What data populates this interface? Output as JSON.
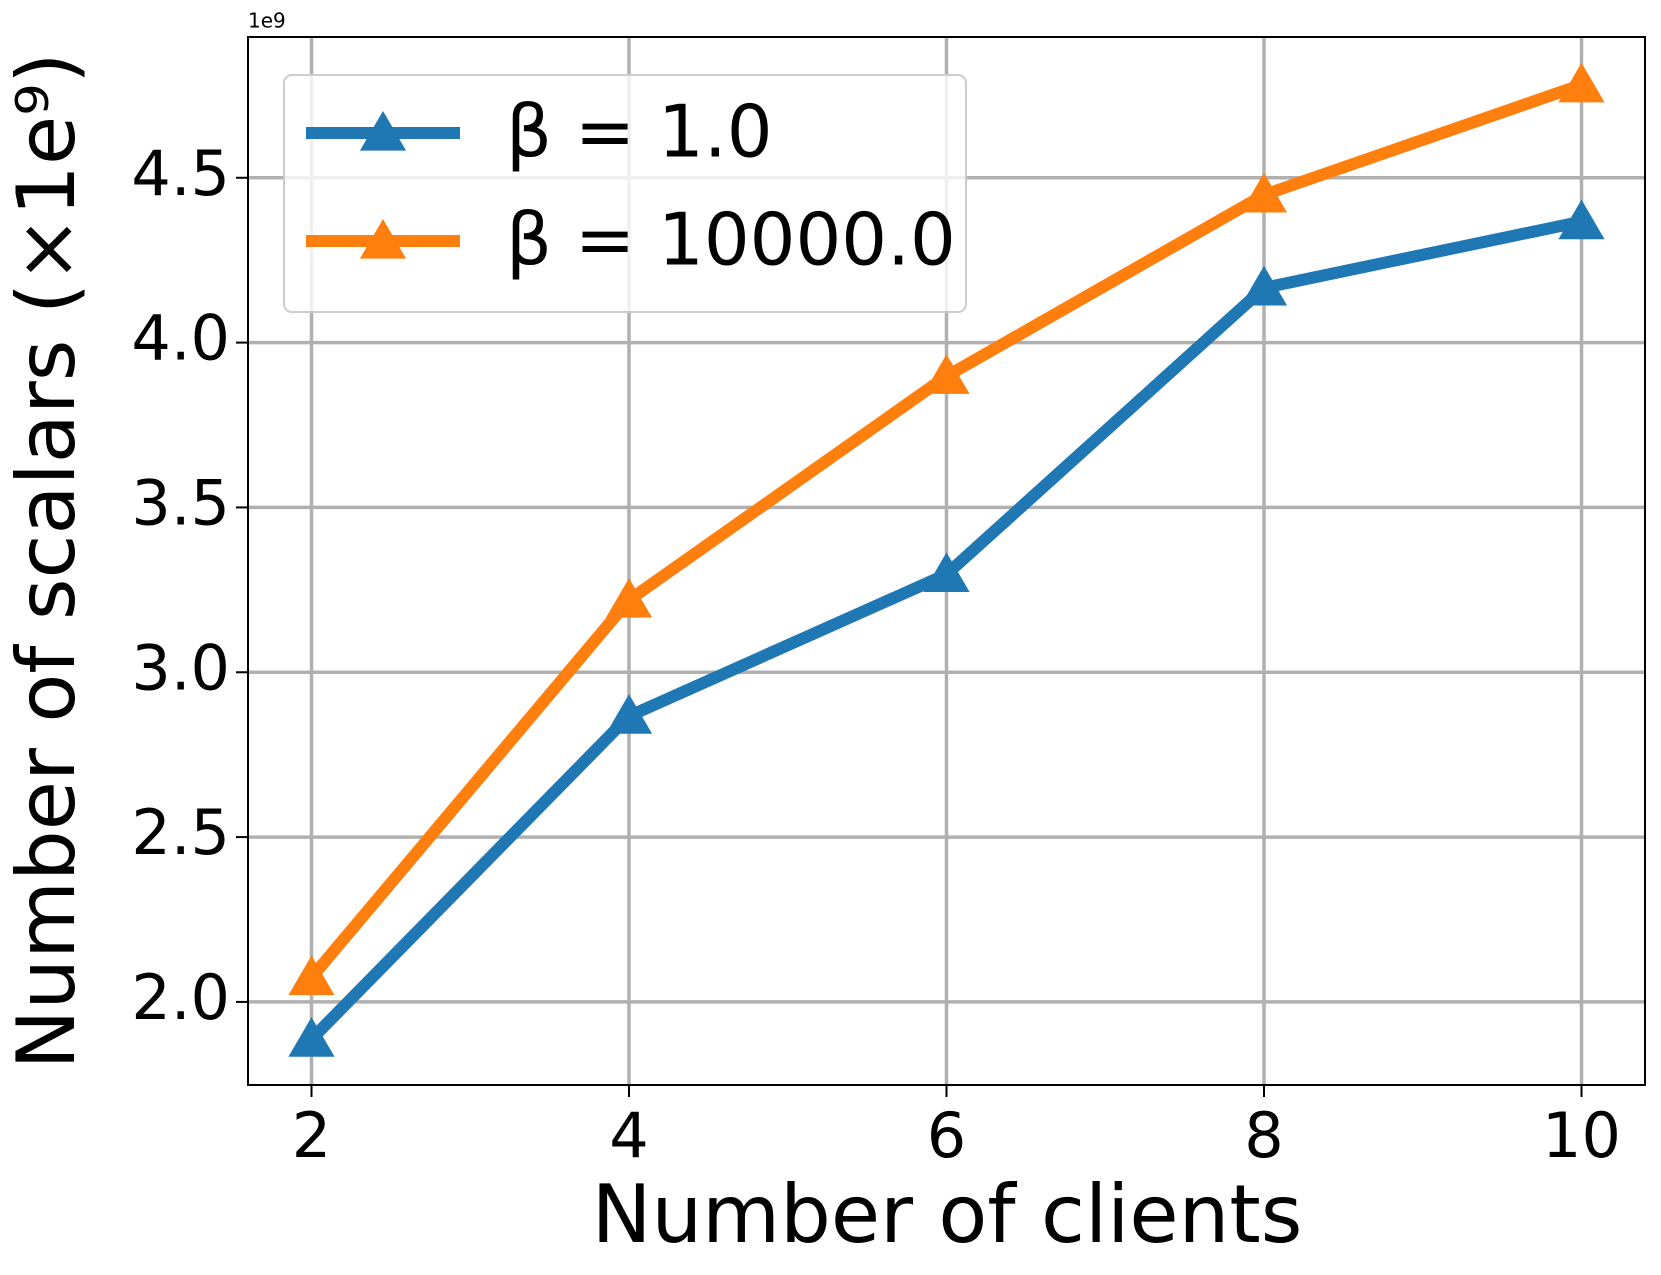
{
  "chart_data": {
    "type": "line",
    "x_label": "Number of clients",
    "y_label": "Number of scalars (×1e⁹)",
    "y_offset_label": "1e9",
    "x": [
      2,
      4,
      6,
      8,
      10
    ],
    "series": [
      {
        "name": "β = 1.0",
        "color": "#1f77b4",
        "values": [
          1.887,
          2.867,
          3.297,
          4.166,
          4.367
        ]
      },
      {
        "name": "β = 10000.0",
        "color": "#ff7f0e",
        "values": [
          2.074,
          3.219,
          3.898,
          4.448,
          4.782
        ]
      }
    ],
    "xlim": [
      1.6,
      10.4
    ],
    "xticks": [
      2,
      4,
      6,
      8,
      10
    ],
    "ylim": [
      1.748,
      4.927
    ],
    "yticks": [
      {
        "value": 2.0,
        "label": "2.0"
      },
      {
        "value": 2.5,
        "label": "2.5"
      },
      {
        "value": 3.0,
        "label": "3.0"
      },
      {
        "value": 3.5,
        "label": "3.5"
      },
      {
        "value": 4.0,
        "label": "4.0"
      },
      {
        "value": 4.5,
        "label": "4.5"
      }
    ],
    "grid": true,
    "legend": "upper left",
    "marker": "triangle"
  }
}
